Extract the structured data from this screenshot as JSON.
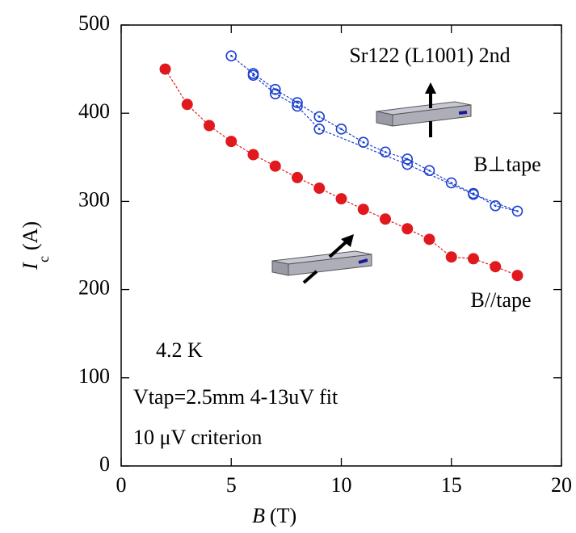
{
  "chart_data": {
    "type": "scatter",
    "title": "Sr122 (L1001) 2nd",
    "annotations": [
      "4.2 K",
      "Vtap=2.5mm 4-13uV fit",
      "10 μV criterion"
    ],
    "xlabel": {
      "symbol": "B",
      "unit": "(T)"
    },
    "ylabel": {
      "symbol": "I",
      "subscript": "c",
      "unit": "(A)"
    },
    "xlim": [
      0,
      20
    ],
    "xticks": [
      0,
      5,
      10,
      15,
      20
    ],
    "ylim": [
      0,
      500
    ],
    "yticks": [
      0,
      100,
      200,
      300,
      400,
      500
    ],
    "series": [
      {
        "name": "B⊥tape",
        "color": "#1a3fd0",
        "marker": "open",
        "x": [
          5,
          6,
          7,
          8,
          9,
          10,
          11,
          12,
          13,
          14,
          15,
          16,
          17,
          18,
          16,
          13,
          9,
          8,
          7,
          6
        ],
        "values": [
          465,
          445,
          427,
          412,
          396,
          382,
          367,
          356,
          348,
          335,
          321,
          309,
          295,
          289,
          308,
          342,
          382,
          408,
          422,
          443
        ]
      },
      {
        "name": "B//tape",
        "color": "#e0191e",
        "marker": "filled",
        "x": [
          2,
          3,
          4,
          5,
          6,
          7,
          8,
          9,
          10,
          11,
          12,
          13,
          14,
          15,
          16,
          17,
          18
        ],
        "values": [
          450,
          410,
          386,
          368,
          353,
          340,
          327,
          315,
          303,
          291,
          280,
          269,
          257,
          237,
          235,
          226,
          216
        ]
      }
    ]
  }
}
